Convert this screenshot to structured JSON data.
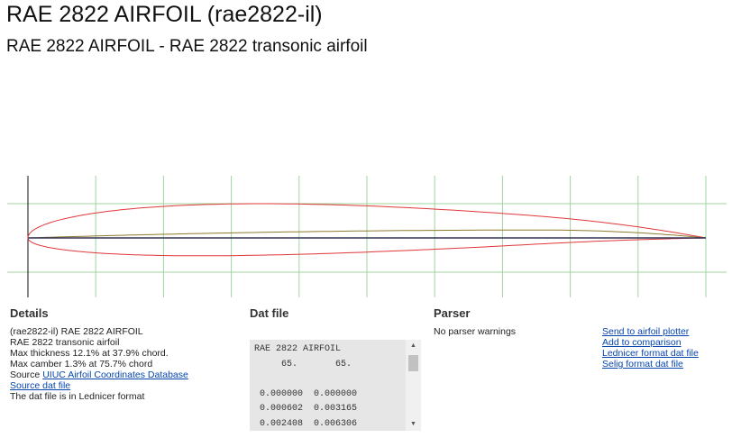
{
  "page": {
    "title": "RAE 2822 AIRFOIL (rae2822-il)",
    "subtitle": "RAE 2822 AIRFOIL - RAE 2822 transonic airfoil"
  },
  "colors": {
    "airfoil_outline": "#e0383a",
    "camber_line": "#8e7b2e",
    "chord_line": "#333355",
    "grid": "#9fd49f",
    "link": "#0645ad"
  },
  "details": {
    "heading": "Details",
    "line1": "(rae2822-il) RAE 2822 AIRFOIL",
    "line2": "RAE 2822 transonic airfoil",
    "max_thickness": "Max thickness 12.1% at 37.9% chord.",
    "max_camber": "Max camber 1.3% at 75.7% chord",
    "source_prefix": "Source ",
    "source_link": "UIUC Airfoil Coordinates Database",
    "source_dat_link": "Source dat file",
    "format_note": "The dat file is in Lednicer format"
  },
  "datfile": {
    "heading": "Dat file",
    "lines": [
      "RAE 2822 AIRFOIL",
      "     65.       65.",
      "",
      " 0.000000  0.000000",
      " 0.000602  0.003165",
      " 0.002408  0.006306"
    ]
  },
  "parser": {
    "heading": "Parser",
    "message": "No parser warnings"
  },
  "actions": {
    "send_plotter": "Send to airfoil plotter",
    "add_comparison": "Add to comparison",
    "lednicer_dat": "Lednicer format dat file",
    "selig_dat": "Selig format dat file"
  }
}
